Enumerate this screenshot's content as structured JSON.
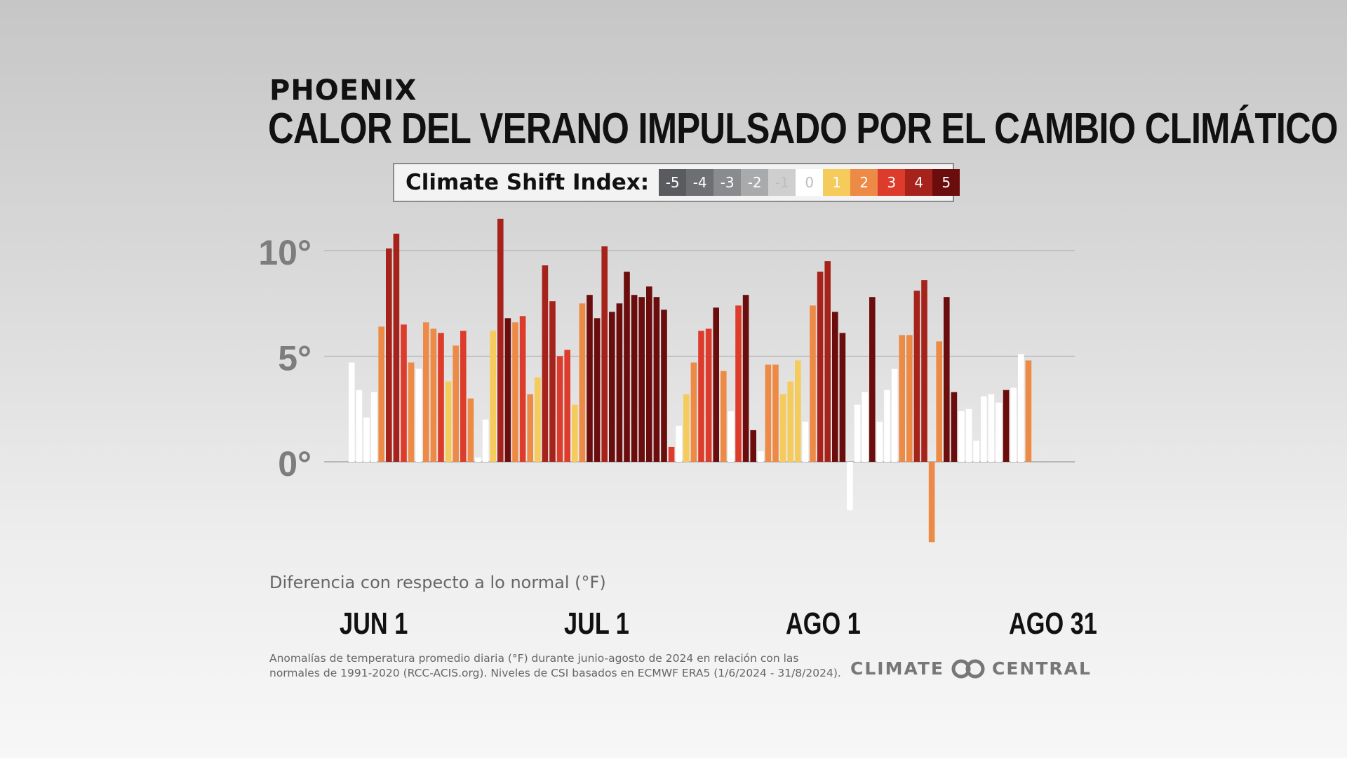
{
  "header": {
    "city": "PHOENIX",
    "title": "CALOR DEL VERANO IMPULSADO POR EL CAMBIO CLIMÁTICO"
  },
  "legend": {
    "title": "Climate Shift Index:",
    "levels": [
      {
        "label": "-5",
        "color": "#5a5b5e"
      },
      {
        "label": "-4",
        "color": "#6e6f72"
      },
      {
        "label": "-3",
        "color": "#8a8b8e"
      },
      {
        "label": "-2",
        "color": "#a9aaac"
      },
      {
        "label": "-1",
        "color": "#cfcfcf"
      },
      {
        "label": "0",
        "color": "#ffffff"
      },
      {
        "label": "1",
        "color": "#f5cb5c"
      },
      {
        "label": "2",
        "color": "#ec8a46"
      },
      {
        "label": "3",
        "color": "#dd3c2c"
      },
      {
        "label": "4",
        "color": "#a6231c"
      },
      {
        "label": "5",
        "color": "#6b0d0d"
      }
    ]
  },
  "chart_data": {
    "type": "bar",
    "ylabel": "Diferencia con respecto a lo normal (°F)",
    "ylim": [
      -4,
      11
    ],
    "y_ticks": [
      {
        "value": 0,
        "label": "0°"
      },
      {
        "value": 5,
        "label": "5°"
      },
      {
        "value": 10,
        "label": "10°"
      }
    ],
    "x_ticks": [
      {
        "day_index": 0,
        "label": "JUN 1"
      },
      {
        "day_index": 30,
        "label": "JUL 1"
      },
      {
        "day_index": 61,
        "label": "AGO 1"
      },
      {
        "day_index": 91,
        "label": "AGO 31"
      }
    ],
    "grid": true,
    "note": "values are daily anomalies (°F) for Jun 1 – Aug 31, 2024; csi is Climate Shift Index level of each bar",
    "values": [
      4.7,
      3.4,
      2.1,
      3.3,
      6.4,
      10.1,
      10.8,
      6.5,
      4.7,
      4.4,
      6.6,
      6.3,
      6.1,
      3.8,
      5.5,
      6.2,
      3.0,
      0.2,
      2.0,
      6.2,
      11.5,
      6.8,
      6.6,
      6.9,
      3.2,
      4.0,
      9.3,
      7.6,
      5.0,
      5.3,
      2.7,
      7.5,
      7.9,
      6.8,
      10.2,
      7.1,
      7.5,
      9.0,
      7.9,
      7.8,
      8.3,
      7.8,
      7.2,
      0.7,
      1.7,
      3.2,
      4.7,
      6.2,
      6.3,
      7.3,
      4.3,
      2.4,
      7.4,
      7.9,
      1.5,
      0.5,
      4.6,
      4.6,
      3.2,
      3.8,
      4.8,
      1.9,
      7.4,
      9.0,
      9.5,
      7.1,
      6.1,
      -2.3,
      2.7,
      3.3,
      7.8,
      1.9,
      3.4,
      4.4,
      6.0,
      6.0,
      8.1,
      8.6,
      -3.8,
      5.7,
      7.8,
      3.3,
      2.4,
      2.5,
      1.0,
      3.1,
      3.2,
      2.8,
      3.4,
      3.5,
      5.1,
      4.8
    ],
    "csi": [
      0,
      0,
      0,
      0,
      2,
      4,
      4,
      3,
      2,
      0,
      2,
      2,
      3,
      1,
      2,
      3,
      2,
      0,
      0,
      1,
      4,
      5,
      2,
      3,
      2,
      1,
      4,
      4,
      3,
      3,
      1,
      2,
      5,
      5,
      4,
      5,
      5,
      5,
      5,
      5,
      5,
      5,
      5,
      3,
      0,
      1,
      2,
      3,
      3,
      5,
      2,
      0,
      3,
      5,
      5,
      0,
      2,
      2,
      1,
      1,
      1,
      0,
      2,
      4,
      4,
      5,
      5,
      0,
      0,
      0,
      5,
      0,
      0,
      0,
      2,
      2,
      4,
      4,
      2,
      2,
      5,
      5,
      0,
      0,
      0,
      0,
      0,
      0,
      5,
      0,
      0,
      2
    ]
  },
  "footnote": "Anomalías de temperatura promedio diaria (°F) durante junio-agosto de 2024 en relación con las normales de 1991-2020 (RCC-ACIS.org). Niveles de CSI basados en ECMWF ERA5 (1/6/2024 - 31/8/2024).",
  "brand": {
    "left": "CLIMATE",
    "right": "CENTRAL",
    "logo_icon": "linked-circles-icon"
  }
}
